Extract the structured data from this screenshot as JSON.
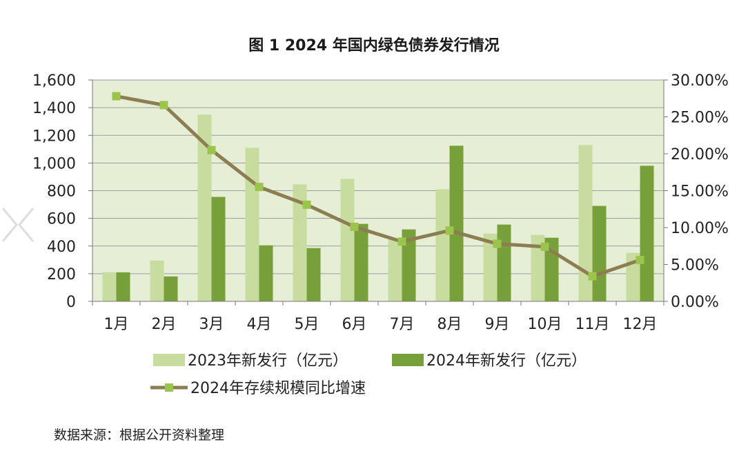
{
  "chart_data": {
    "type": "bar",
    "title": "图 1 2024 年国内绿色债券发行情况",
    "categories": [
      "1月",
      "2月",
      "3月",
      "4月",
      "5月",
      "6月",
      "7月",
      "8月",
      "9月",
      "10月",
      "11月",
      "12月"
    ],
    "series": [
      {
        "name": "2023年新发行（亿元）",
        "kind": "bar",
        "axis": "left",
        "color": "#c9dca0",
        "values": [
          210,
          295,
          1350,
          1110,
          845,
          885,
          450,
          810,
          490,
          480,
          1130,
          350
        ]
      },
      {
        "name": "2024年新发行（亿元）",
        "kind": "bar",
        "axis": "left",
        "color": "#77a03a",
        "values": [
          210,
          180,
          755,
          405,
          385,
          560,
          520,
          1125,
          555,
          460,
          690,
          980
        ]
      },
      {
        "name": "2024年存续规模同比增速",
        "kind": "line",
        "axis": "right",
        "color": "#8c7d52",
        "marker_color": "#9bc44c",
        "values": [
          27.8,
          26.6,
          20.5,
          15.5,
          13.1,
          10.1,
          8.1,
          9.6,
          7.8,
          7.4,
          3.4,
          5.6
        ]
      }
    ],
    "ylim_left": [
      0,
      1600
    ],
    "yticks_left": [
      "0",
      "200",
      "400",
      "600",
      "800",
      "1,000",
      "1,200",
      "1,400",
      "1,600"
    ],
    "ylim_right": [
      0,
      30
    ],
    "yticks_right": [
      "0.00%",
      "5.00%",
      "10.00%",
      "15.00%",
      "20.00%",
      "25.00%",
      "30.00%"
    ],
    "plot_background": "#e6eed6",
    "grid": true,
    "legend_position": "bottom"
  },
  "source_note": "数据来源：根据公开资料整理"
}
